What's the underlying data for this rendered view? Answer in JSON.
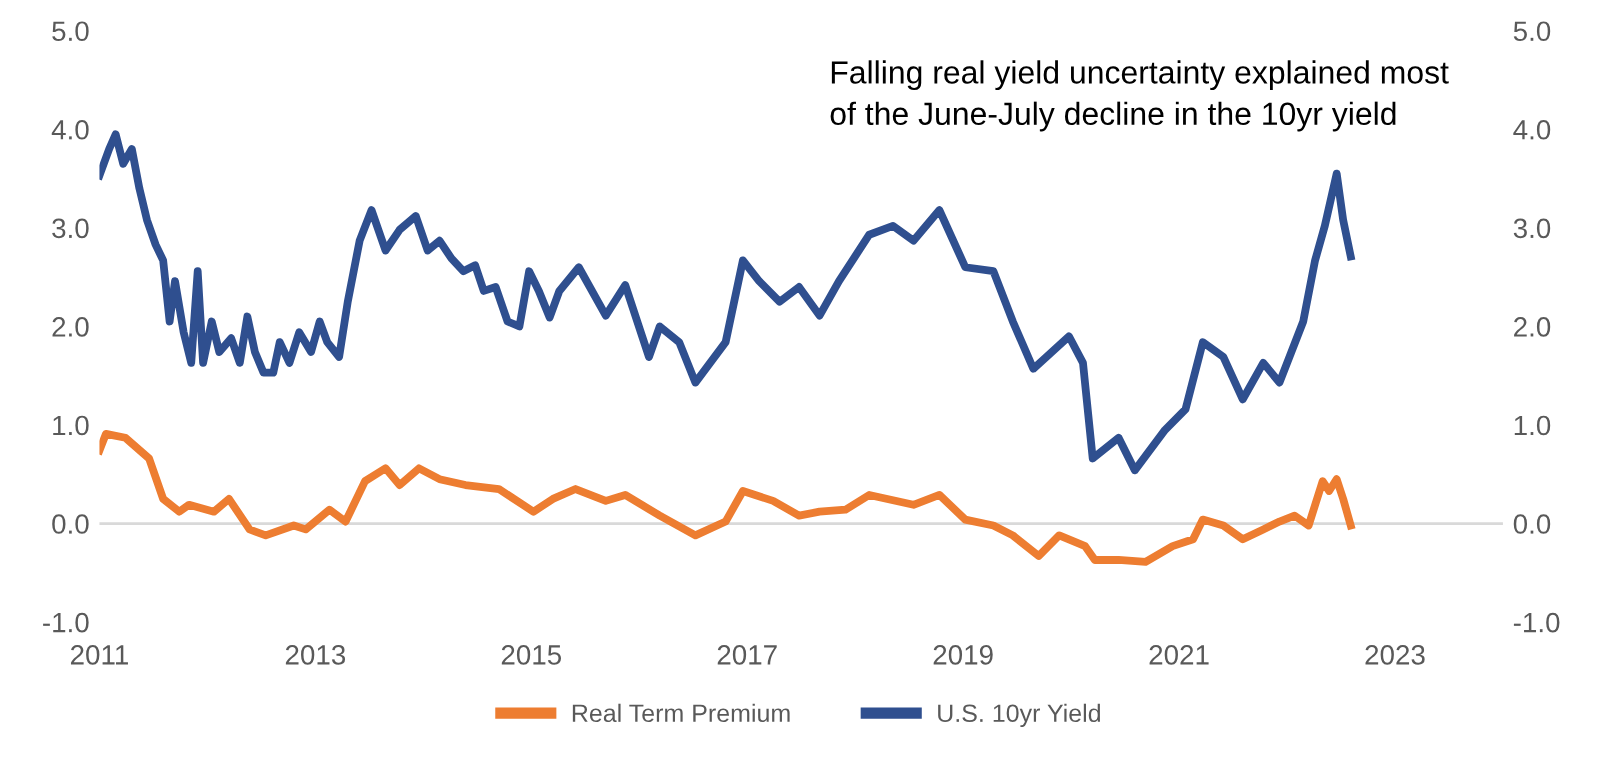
{
  "chart_data": {
    "type": "line",
    "annotations": [
      "Falling real yield uncertainty explained most\nof the June-July decline in the 10yr yield"
    ],
    "xlim": [
      2011,
      2024
    ],
    "xticks": [
      2011,
      2013,
      2015,
      2017,
      2019,
      2021,
      2023
    ],
    "ylim": [
      -1,
      5
    ],
    "yticks": [
      {
        "value": -1,
        "label": "-1.0"
      },
      {
        "value": 0,
        "label": "0.0"
      },
      {
        "value": 1,
        "label": "1.0"
      },
      {
        "value": 2,
        "label": "2.0"
      },
      {
        "value": 3,
        "label": "3.0"
      },
      {
        "value": 4,
        "label": "4.0"
      },
      {
        "value": 5,
        "label": "5.0"
      }
    ],
    "y2lim": [
      -1,
      5
    ],
    "y2ticks": [
      {
        "value": -1,
        "label": "-1.0"
      },
      {
        "value": 0,
        "label": "0.0"
      },
      {
        "value": 1,
        "label": "1.0"
      },
      {
        "value": 2,
        "label": "2.0"
      },
      {
        "value": 3,
        "label": "3.0"
      },
      {
        "value": 4,
        "label": "4.0"
      },
      {
        "value": 5,
        "label": "5.0"
      }
    ],
    "ref_lines": [
      {
        "axis": "y",
        "value": 0,
        "color": "#d9d9d9"
      }
    ],
    "grid": false,
    "legend": "bottom",
    "marker": "none",
    "line_style": "solid",
    "series": [
      {
        "name": "Real Term Premium",
        "color": "#ed7d31",
        "x": [
          2011.0,
          2011.06,
          2011.24,
          2011.46,
          2011.59,
          2011.74,
          2011.83,
          2012.06,
          2012.2,
          2012.39,
          2012.54,
          2012.8,
          2012.91,
          2013.13,
          2013.28,
          2013.46,
          2013.65,
          2013.78,
          2013.96,
          2014.15,
          2014.39,
          2014.7,
          2015.02,
          2015.2,
          2015.41,
          2015.69,
          2015.87,
          2016.19,
          2016.52,
          2016.8,
          2016.96,
          2017.24,
          2017.48,
          2017.67,
          2017.91,
          2018.13,
          2018.54,
          2018.78,
          2019.02,
          2019.28,
          2019.46,
          2019.7,
          2019.89,
          2020.13,
          2020.22,
          2020.44,
          2020.69,
          2020.94,
          2021.13,
          2021.22,
          2021.41,
          2021.59,
          2021.78,
          2021.93,
          2022.07,
          2022.2,
          2022.33,
          2022.39,
          2022.46,
          2022.52,
          2022.59
        ],
        "values": [
          0.74,
          0.91,
          0.87,
          0.66,
          0.25,
          0.12,
          0.19,
          0.12,
          0.25,
          -0.06,
          -0.12,
          -0.02,
          -0.06,
          0.14,
          0.02,
          0.43,
          0.56,
          0.39,
          0.56,
          0.45,
          0.39,
          0.35,
          0.12,
          0.25,
          0.35,
          0.23,
          0.29,
          0.08,
          -0.12,
          0.02,
          0.33,
          0.23,
          0.08,
          0.12,
          0.14,
          0.29,
          0.19,
          0.29,
          0.04,
          -0.02,
          -0.12,
          -0.33,
          -0.12,
          -0.23,
          -0.37,
          -0.37,
          -0.39,
          -0.23,
          -0.16,
          0.04,
          -0.02,
          -0.16,
          -0.06,
          0.02,
          0.08,
          -0.02,
          0.43,
          0.33,
          0.45,
          0.25,
          -0.02
        ]
      },
      {
        "name": "U.S. 10yr Yield",
        "color": "#2f4f8f",
        "x": [
          2011.0,
          2011.09,
          2011.15,
          2011.22,
          2011.3,
          2011.37,
          2011.44,
          2011.52,
          2011.59,
          2011.65,
          2011.7,
          2011.78,
          2011.85,
          2011.91,
          2011.96,
          2012.04,
          2012.11,
          2012.22,
          2012.3,
          2012.37,
          2012.44,
          2012.52,
          2012.61,
          2012.67,
          2012.76,
          2012.85,
          2012.96,
          2013.04,
          2013.11,
          2013.22,
          2013.3,
          2013.41,
          2013.52,
          2013.65,
          2013.78,
          2013.93,
          2014.04,
          2014.15,
          2014.26,
          2014.37,
          2014.48,
          2014.56,
          2014.67,
          2014.78,
          2014.89,
          2014.98,
          2015.07,
          2015.17,
          2015.26,
          2015.44,
          2015.69,
          2015.87,
          2016.09,
          2016.19,
          2016.37,
          2016.52,
          2016.8,
          2016.96,
          2017.11,
          2017.3,
          2017.48,
          2017.67,
          2017.85,
          2018.13,
          2018.35,
          2018.54,
          2018.78,
          2019.02,
          2019.28,
          2019.46,
          2019.65,
          2019.98,
          2020.11,
          2020.2,
          2020.44,
          2020.59,
          2020.87,
          2021.06,
          2021.22,
          2021.41,
          2021.59,
          2021.78,
          2021.93,
          2022.15,
          2022.26,
          2022.35,
          2022.46,
          2022.52,
          2022.59
        ],
        "values": [
          3.53,
          3.8,
          3.95,
          3.65,
          3.8,
          3.4,
          3.08,
          2.83,
          2.67,
          2.05,
          2.46,
          1.94,
          1.63,
          2.56,
          1.63,
          2.05,
          1.74,
          1.88,
          1.63,
          2.1,
          1.74,
          1.53,
          1.53,
          1.84,
          1.63,
          1.94,
          1.74,
          2.05,
          1.84,
          1.69,
          2.25,
          2.87,
          3.18,
          2.77,
          2.98,
          3.12,
          2.77,
          2.87,
          2.69,
          2.56,
          2.62,
          2.36,
          2.4,
          2.05,
          2.0,
          2.56,
          2.36,
          2.09,
          2.36,
          2.6,
          2.11,
          2.42,
          1.69,
          2.0,
          1.84,
          1.43,
          1.84,
          2.67,
          2.46,
          2.25,
          2.4,
          2.11,
          2.46,
          2.93,
          3.02,
          2.87,
          3.18,
          2.6,
          2.56,
          2.05,
          1.57,
          1.9,
          1.63,
          0.66,
          0.87,
          0.54,
          0.95,
          1.16,
          1.84,
          1.69,
          1.26,
          1.63,
          1.43,
          2.05,
          2.67,
          3.02,
          3.55,
          3.08,
          2.71
        ]
      }
    ]
  }
}
